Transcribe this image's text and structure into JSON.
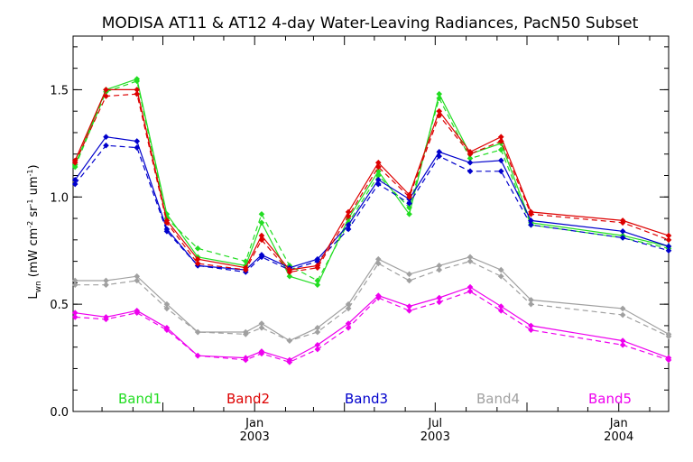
{
  "chart_data": {
    "type": "line",
    "title": "MODISA AT11 & AT12 4-day Water-Leaving Radiances, PacN50 Subset",
    "ylabel_main": "L",
    "ylabel_sub": "wn",
    "ylabel_units": "(mW cm",
    "ylabel_units_2": " sr",
    "ylabel_units_3": " um",
    "ylabel_sup": "-2",
    "ylabel_sup_2": "-1",
    "ylabel_sup_3": "-1",
    "ylabel_close": ")",
    "ylim": [
      0.0,
      1.75
    ],
    "yticks": [
      {
        "value": 0.0,
        "label": "0.0"
      },
      {
        "value": 0.5,
        "label": "0.5"
      },
      {
        "value": 1.0,
        "label": "1.0"
      },
      {
        "value": 1.5,
        "label": "1.5"
      }
    ],
    "xlim": [
      "2002-07-03",
      "2004-02-20"
    ],
    "xticks": [
      {
        "date": "2002-10-01",
        "labels": []
      },
      {
        "date": "2003-01-01",
        "labels": [
          "Jan",
          "2003"
        ]
      },
      {
        "date": "2003-04-01",
        "labels": []
      },
      {
        "date": "2003-07-01",
        "labels": [
          "Jul",
          "2003"
        ]
      },
      {
        "date": "2003-10-01",
        "labels": []
      },
      {
        "date": "2004-01-01",
        "labels": [
          "Jan",
          "2004"
        ]
      }
    ],
    "x": [
      "2002-07-05",
      "2002-08-05",
      "2002-09-05",
      "2002-10-05",
      "2002-11-05",
      "2002-12-23",
      "2003-01-08",
      "2003-02-05",
      "2003-03-05",
      "2003-04-05",
      "2003-05-05",
      "2003-06-05",
      "2003-07-05",
      "2003-08-05",
      "2003-09-05",
      "2003-10-05",
      "2004-01-05",
      "2004-02-20"
    ],
    "series": [
      {
        "name": "Band1",
        "color": "#22dd22",
        "at11": [
          1.15,
          1.5,
          1.55,
          0.92,
          0.72,
          0.68,
          0.88,
          0.63,
          0.59,
          0.9,
          1.12,
          0.92,
          1.48,
          1.2,
          1.25,
          0.88,
          0.82,
          0.77
        ],
        "at12": [
          1.14,
          1.49,
          1.54,
          0.9,
          0.76,
          0.7,
          0.92,
          0.68,
          0.61,
          0.88,
          1.1,
          0.95,
          1.46,
          1.18,
          1.22,
          0.87,
          0.81,
          0.76
        ]
      },
      {
        "name": "Band2",
        "color": "#dd0000",
        "at11": [
          1.17,
          1.5,
          1.5,
          0.89,
          0.71,
          0.67,
          0.82,
          0.66,
          0.68,
          0.93,
          1.16,
          1.01,
          1.4,
          1.21,
          1.28,
          0.93,
          0.89,
          0.82
        ],
        "at12": [
          1.16,
          1.47,
          1.48,
          0.88,
          0.69,
          0.66,
          0.8,
          0.65,
          0.67,
          0.91,
          1.14,
          1.0,
          1.38,
          1.2,
          1.26,
          0.92,
          0.88,
          0.8
        ]
      },
      {
        "name": "Band3",
        "color": "#0000cc",
        "at11": [
          1.08,
          1.28,
          1.26,
          0.85,
          0.68,
          0.66,
          0.73,
          0.67,
          0.71,
          0.87,
          1.08,
          0.99,
          1.21,
          1.16,
          1.17,
          0.89,
          0.84,
          0.77
        ],
        "at12": [
          1.06,
          1.24,
          1.23,
          0.84,
          0.68,
          0.65,
          0.72,
          0.66,
          0.7,
          0.85,
          1.06,
          0.97,
          1.19,
          1.12,
          1.12,
          0.87,
          0.81,
          0.75
        ]
      },
      {
        "name": "Band4",
        "color": "#a0a0a0",
        "at11": [
          0.61,
          0.61,
          0.63,
          0.5,
          0.37,
          0.37,
          0.41,
          0.33,
          0.39,
          0.5,
          0.71,
          0.64,
          0.68,
          0.72,
          0.66,
          0.52,
          0.48,
          0.36
        ],
        "at12": [
          0.59,
          0.59,
          0.61,
          0.48,
          0.37,
          0.36,
          0.39,
          0.33,
          0.37,
          0.48,
          0.69,
          0.61,
          0.66,
          0.7,
          0.63,
          0.5,
          0.45,
          0.35
        ]
      },
      {
        "name": "Band5",
        "color": "#ee00ee",
        "at11": [
          0.46,
          0.44,
          0.47,
          0.39,
          0.26,
          0.25,
          0.28,
          0.24,
          0.31,
          0.41,
          0.54,
          0.49,
          0.53,
          0.58,
          0.49,
          0.4,
          0.33,
          0.25
        ],
        "at12": [
          0.44,
          0.43,
          0.46,
          0.38,
          0.26,
          0.24,
          0.27,
          0.23,
          0.29,
          0.39,
          0.53,
          0.47,
          0.51,
          0.56,
          0.47,
          0.38,
          0.31,
          0.24
        ]
      }
    ],
    "grid": false,
    "legend_position": "bottom-inside"
  }
}
